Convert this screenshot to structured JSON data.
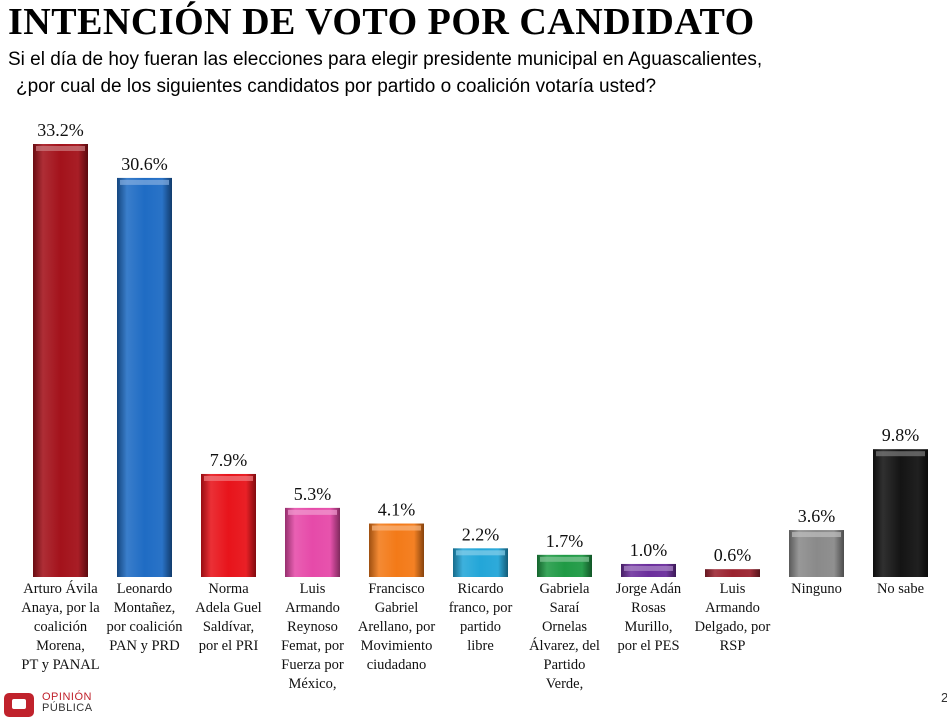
{
  "title": "INTENCIÓN DE VOTO POR CANDIDATO",
  "question_line1": "Si el día de hoy fueran las elecciones para elegir presidente municipal en Aguascalientes,",
  "question_line2": "¿por cual de los siguientes candidatos por partido o coalición votaría usted?",
  "logo": {
    "line1": "OPINIÓN",
    "line2": "PÚBLICA"
  },
  "page_number": "2",
  "chart_data": {
    "type": "bar",
    "title": "INTENCIÓN DE VOTO POR CANDIDATO",
    "ylim": [
      0,
      33.2
    ],
    "grid": false,
    "legend": "none",
    "value_suffix": "%",
    "categories": [
      [
        "Arturo Ávila",
        "Anaya, por la",
        "coalición",
        "Morena,",
        "PT y PANAL"
      ],
      [
        "Leonardo",
        "Montañez,",
        "por coalición",
        "PAN y PRD"
      ],
      [
        "Norma",
        "Adela Guel",
        "Saldívar,",
        "por el PRI"
      ],
      [
        "Luis",
        "Armando",
        "Reynoso",
        "Femat, por",
        "Fuerza por",
        "México,"
      ],
      [
        "Francisco",
        "Gabriel",
        "Arellano, por",
        "Movimiento",
        "ciudadano"
      ],
      [
        "Ricardo",
        "franco, por",
        "partido",
        "libre"
      ],
      [
        "Gabriela",
        "Saraí",
        "Ornelas",
        "Álvarez, del",
        "Partido",
        "Verde,"
      ],
      [
        "Jorge Adán",
        "Rosas",
        "Murillo,",
        "por el PES"
      ],
      [
        "Luis",
        "Armando",
        "Delgado, por",
        "RSP"
      ],
      [
        "Ninguno"
      ],
      [
        "No sabe"
      ]
    ],
    "values": [
      33.2,
      30.6,
      7.9,
      5.3,
      4.1,
      2.2,
      1.7,
      1.0,
      0.6,
      3.6,
      9.8
    ],
    "value_labels": [
      "33.2%",
      "30.6%",
      "7.9%",
      "5.3%",
      "4.1%",
      "2.2%",
      "1.7%",
      "1.0%",
      "0.6%",
      "3.6%",
      "9.8%"
    ],
    "colors": [
      "#a3121b",
      "#1f6cc4",
      "#e8141b",
      "#e64aa9",
      "#f37a18",
      "#23a6d8",
      "#1f9a45",
      "#6b2e9c",
      "#9b2330",
      "#8a8a8a",
      "#141414"
    ]
  }
}
